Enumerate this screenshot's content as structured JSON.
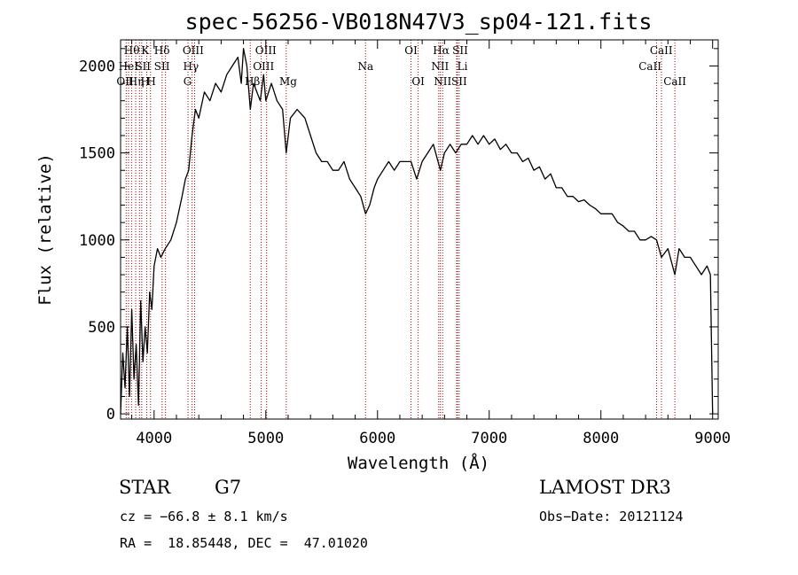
{
  "chart_data": {
    "type": "line",
    "title": "spec-56256-VB018N47V3_sp04-121.fits",
    "xlabel": "Wavelength (Å)",
    "ylabel": "Flux (relative)",
    "xlim": [
      3700,
      9050
    ],
    "ylim": [
      -30,
      2150
    ],
    "x_ticks": [
      4000,
      5000,
      6000,
      7000,
      8000,
      9000
    ],
    "y_ticks": [
      0,
      500,
      1000,
      1500,
      2000
    ],
    "grid": false,
    "series": [
      {
        "color": "#000000",
        "x": [
          3700,
          3720,
          3740,
          3760,
          3780,
          3800,
          3820,
          3840,
          3860,
          3880,
          3900,
          3920,
          3940,
          3960,
          3980,
          4000,
          4030,
          4060,
          4100,
          4150,
          4200,
          4250,
          4280,
          4310,
          4340,
          4370,
          4400,
          4450,
          4500,
          4550,
          4600,
          4650,
          4700,
          4750,
          4780,
          4800,
          4830,
          4861,
          4890,
          4920,
          4950,
          4980,
          5000,
          5050,
          5100,
          5150,
          5183,
          5220,
          5280,
          5350,
          5400,
          5450,
          5500,
          5550,
          5600,
          5650,
          5700,
          5750,
          5800,
          5850,
          5893,
          5930,
          5970,
          6000,
          6050,
          6100,
          6150,
          6200,
          6250,
          6300,
          6350,
          6400,
          6450,
          6500,
          6563,
          6600,
          6650,
          6700,
          6750,
          6800,
          6850,
          6900,
          6950,
          7000,
          7050,
          7100,
          7150,
          7200,
          7250,
          7300,
          7350,
          7400,
          7450,
          7500,
          7550,
          7600,
          7650,
          7700,
          7750,
          7800,
          7850,
          7900,
          7950,
          8000,
          8050,
          8100,
          8150,
          8200,
          8250,
          8300,
          8350,
          8400,
          8450,
          8498,
          8542,
          8600,
          8662,
          8700,
          8750,
          8800,
          8850,
          8900,
          8950,
          8980,
          9000
        ],
        "y": [
          0,
          350,
          150,
          500,
          100,
          600,
          200,
          400,
          50,
          650,
          300,
          500,
          350,
          700,
          600,
          850,
          950,
          900,
          950,
          1000,
          1100,
          1250,
          1350,
          1400,
          1600,
          1750,
          1700,
          1850,
          1800,
          1900,
          1850,
          1950,
          2000,
          2050,
          1900,
          2100,
          2000,
          1750,
          1900,
          1850,
          1800,
          1950,
          1800,
          1900,
          1800,
          1750,
          1500,
          1700,
          1750,
          1700,
          1600,
          1500,
          1450,
          1450,
          1400,
          1400,
          1450,
          1350,
          1300,
          1250,
          1150,
          1200,
          1300,
          1350,
          1400,
          1450,
          1400,
          1450,
          1450,
          1450,
          1350,
          1450,
          1500,
          1550,
          1400,
          1500,
          1550,
          1500,
          1550,
          1550,
          1600,
          1550,
          1600,
          1550,
          1580,
          1520,
          1550,
          1500,
          1500,
          1450,
          1470,
          1400,
          1420,
          1350,
          1380,
          1300,
          1300,
          1250,
          1250,
          1220,
          1230,
          1200,
          1180,
          1150,
          1150,
          1150,
          1100,
          1080,
          1050,
          1050,
          1000,
          1000,
          1020,
          1000,
          900,
          950,
          800,
          950,
          900,
          900,
          850,
          800,
          850,
          800,
          0
        ]
      }
    ],
    "lines": [
      {
        "x": 3750,
        "label": "Hθ",
        "row": 0,
        "lx": 3800
      },
      {
        "x": 3771,
        "label": "OII",
        "row": 2,
        "lx": 3740
      },
      {
        "x": 3798,
        "label": "HeI",
        "row": 1,
        "lx": 3770
      },
      {
        "x": 3835,
        "label": "Hη",
        "row": 2,
        "lx": 3840
      },
      {
        "x": 3869,
        "label": "SII",
        "row": 1,
        "lx": 3900
      },
      {
        "x": 3889,
        "label": "H",
        "row": 2,
        "lx": 3920
      },
      {
        "x": 3934,
        "label": "K",
        "row": 0,
        "lx": 3920
      },
      {
        "x": 3968,
        "label": "H",
        "row": 2,
        "lx": 3975
      },
      {
        "x": 4102,
        "label": "Hδ",
        "row": 0,
        "lx": 4070
      },
      {
        "x": 4072,
        "label": "SII",
        "row": 1,
        "lx": 4070
      },
      {
        "x": 4304,
        "label": "G",
        "row": 2,
        "lx": 4300
      },
      {
        "x": 4340,
        "label": "Hγ",
        "row": 1,
        "lx": 4330
      },
      {
        "x": 4363,
        "label": "OIII",
        "row": 0,
        "lx": 4350
      },
      {
        "x": 4861,
        "label": "Hβ",
        "row": 2,
        "lx": 4880
      },
      {
        "x": 4959,
        "label": "OIII",
        "row": 0,
        "lx": 5000
      },
      {
        "x": 5007,
        "label": "OIII",
        "row": 1,
        "lx": 4980
      },
      {
        "x": 5183,
        "label": "Mg",
        "row": 2,
        "lx": 5200
      },
      {
        "x": 5893,
        "label": "Na",
        "row": 1,
        "lx": 5893
      },
      {
        "x": 6300,
        "label": "OI",
        "row": 0,
        "lx": 6300
      },
      {
        "x": 6364,
        "label": "OI",
        "row": 2,
        "lx": 6364
      },
      {
        "x": 6548,
        "label": "NII",
        "row": 1,
        "lx": 6560
      },
      {
        "x": 6563,
        "label": "Hα",
        "row": 0,
        "lx": 6570
      },
      {
        "x": 6583,
        "label": "NII",
        "row": 2,
        "lx": 6583
      },
      {
        "x": 6708,
        "label": "Li",
        "row": 1,
        "lx": 6760
      },
      {
        "x": 6716,
        "label": "SII",
        "row": 0,
        "lx": 6740
      },
      {
        "x": 6731,
        "label": "SII",
        "row": 2,
        "lx": 6731
      },
      {
        "x": 8498,
        "label": "CaII",
        "row": 1,
        "lx": 8440
      },
      {
        "x": 8542,
        "label": "CaII",
        "row": 0,
        "lx": 8540
      },
      {
        "x": 8662,
        "label": "CaII",
        "row": 2,
        "lx": 8662
      }
    ]
  },
  "info": {
    "class": "STAR",
    "subclass": "G7",
    "survey": "LAMOST DR3",
    "cz": "cz = −66.8 ± 8.1 km/s",
    "obs_date": "Obs−Date: 20121124",
    "radec": "RA =  18.85448, DEC =  47.01020"
  }
}
